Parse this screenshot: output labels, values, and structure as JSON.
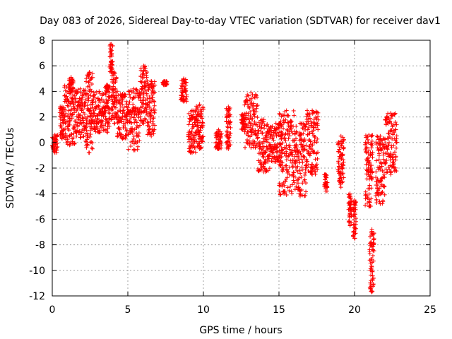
{
  "chart_data": {
    "type": "scatter",
    "title": "Day 083 of 2026, Sidereal Day-to-day VTEC variation (SDTVAR) for receiver dav1",
    "xlabel": "GPS time / hours",
    "ylabel": "SDTVAR / TECUs",
    "xlim": [
      0,
      25
    ],
    "ylim": [
      -12,
      8
    ],
    "xticks": [
      0,
      5,
      10,
      15,
      20,
      25
    ],
    "yticks": [
      -12,
      -10,
      -8,
      -6,
      -4,
      -2,
      0,
      2,
      4,
      6,
      8
    ],
    "grid": true,
    "marker": "+",
    "marker_color": "#ff0000",
    "series": [
      {
        "name": "SDTVAR",
        "clusters": [
          {
            "x_start": 0.0,
            "x_end": 0.35,
            "y_low": -0.8,
            "y_high": 0.6
          },
          {
            "x_start": 0.5,
            "x_end": 0.8,
            "y_low": 0.3,
            "y_high": 2.8
          },
          {
            "x_start": 0.8,
            "x_end": 1.5,
            "y_low": -0.2,
            "y_high": 4.5
          },
          {
            "x_start": 1.1,
            "x_end": 1.4,
            "y_low": 4.0,
            "y_high": 5.1
          },
          {
            "x_start": 1.5,
            "x_end": 2.2,
            "y_low": 0.4,
            "y_high": 4.2
          },
          {
            "x_start": 2.2,
            "x_end": 2.7,
            "y_low": -0.8,
            "y_high": 5.5
          },
          {
            "x_start": 2.7,
            "x_end": 3.5,
            "y_low": 0.8,
            "y_high": 4.0
          },
          {
            "x_start": 3.5,
            "x_end": 3.8,
            "y_low": 0.8,
            "y_high": 4.5
          },
          {
            "x_start": 3.8,
            "x_end": 4.0,
            "y_low": 5.5,
            "y_high": 7.7
          },
          {
            "x_start": 3.9,
            "x_end": 4.3,
            "y_low": 1.5,
            "y_high": 5.5
          },
          {
            "x_start": 4.3,
            "x_end": 5.0,
            "y_low": 0.3,
            "y_high": 3.8
          },
          {
            "x_start": 5.0,
            "x_end": 5.8,
            "y_low": -0.6,
            "y_high": 4.2
          },
          {
            "x_start": 5.8,
            "x_end": 6.3,
            "y_low": 1.5,
            "y_high": 6.0
          },
          {
            "x_start": 6.3,
            "x_end": 6.8,
            "y_low": 0.5,
            "y_high": 4.8
          },
          {
            "x_start": 7.3,
            "x_end": 7.6,
            "y_low": 4.5,
            "y_high": 4.8
          },
          {
            "x_start": 8.5,
            "x_end": 8.9,
            "y_low": 3.2,
            "y_high": 5.0
          },
          {
            "x_start": 9.0,
            "x_end": 9.5,
            "y_low": -0.8,
            "y_high": 2.5
          },
          {
            "x_start": 9.5,
            "x_end": 10.0,
            "y_low": -0.5,
            "y_high": 3.0
          },
          {
            "x_start": 10.8,
            "x_end": 11.2,
            "y_low": -0.5,
            "y_high": 1.0
          },
          {
            "x_start": 11.5,
            "x_end": 11.8,
            "y_low": -0.5,
            "y_high": 2.8
          },
          {
            "x_start": 12.5,
            "x_end": 12.7,
            "y_low": 1.0,
            "y_high": 2.2
          },
          {
            "x_start": 12.7,
            "x_end": 13.6,
            "y_low": -0.4,
            "y_high": 3.9
          },
          {
            "x_start": 13.6,
            "x_end": 14.4,
            "y_low": -2.3,
            "y_high": 1.8
          },
          {
            "x_start": 14.4,
            "x_end": 15.2,
            "y_low": -1.5,
            "y_high": 1.5
          },
          {
            "x_start": 15.0,
            "x_end": 16.0,
            "y_low": -4.1,
            "y_high": 2.5
          },
          {
            "x_start": 16.0,
            "x_end": 16.8,
            "y_low": -4.2,
            "y_high": 1.5
          },
          {
            "x_start": 16.8,
            "x_end": 17.6,
            "y_low": -2.5,
            "y_high": 2.5
          },
          {
            "x_start": 18.0,
            "x_end": 18.2,
            "y_low": -3.8,
            "y_high": -2.5
          },
          {
            "x_start": 18.9,
            "x_end": 19.3,
            "y_low": -3.5,
            "y_high": 0.5
          },
          {
            "x_start": 19.6,
            "x_end": 19.8,
            "y_low": -6.5,
            "y_high": -4.0
          },
          {
            "x_start": 19.9,
            "x_end": 20.1,
            "y_low": -7.5,
            "y_high": -4.5
          },
          {
            "x_start": 20.7,
            "x_end": 21.2,
            "y_low": -5.0,
            "y_high": 0.6
          },
          {
            "x_start": 21.0,
            "x_end": 21.3,
            "y_low": -11.7,
            "y_high": -6.8
          },
          {
            "x_start": 21.4,
            "x_end": 22.0,
            "y_low": -4.8,
            "y_high": 0.5
          },
          {
            "x_start": 22.0,
            "x_end": 22.8,
            "y_low": -2.5,
            "y_high": 2.3
          }
        ]
      }
    ]
  }
}
